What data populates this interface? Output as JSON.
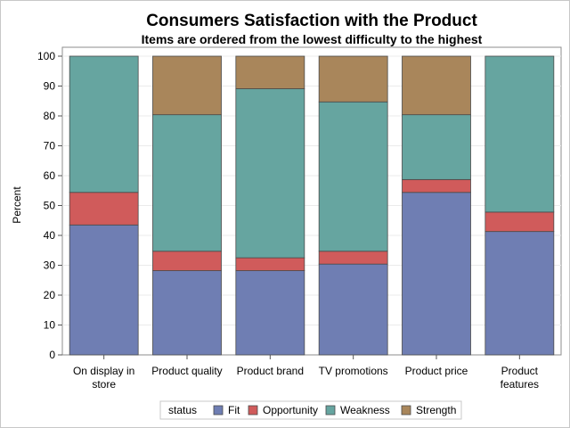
{
  "chart_data": {
    "type": "bar",
    "stacked": true,
    "title": "Consumers Satisfaction with the Product",
    "subtitle": "Items are ordered from the lowest difficulty to the highest",
    "xlabel": "",
    "ylabel": "Percent",
    "ylim": [
      0,
      100
    ],
    "yticks": [
      0,
      10,
      20,
      30,
      40,
      50,
      60,
      70,
      80,
      90,
      100
    ],
    "grid": false,
    "categories": [
      [
        "On display in",
        "store"
      ],
      [
        "Product quality"
      ],
      [
        "Product brand"
      ],
      [
        "TV promotions"
      ],
      [
        "Product price"
      ],
      [
        "Product",
        "features"
      ]
    ],
    "series": [
      {
        "name": "Fit",
        "color": "#6F7EB3",
        "values": [
          43.5,
          28.2,
          28.2,
          30.4,
          54.4,
          41.3
        ]
      },
      {
        "name": "Opportunity",
        "color": "#D05B5B",
        "values": [
          10.9,
          6.5,
          4.3,
          4.3,
          4.3,
          6.5
        ]
      },
      {
        "name": "Weakness",
        "color": "#66A5A0",
        "values": [
          45.6,
          45.7,
          56.6,
          50.0,
          21.7,
          52.2
        ]
      },
      {
        "name": "Strength",
        "color": "#A9865B",
        "values": [
          0,
          19.6,
          10.9,
          15.3,
          19.6,
          0
        ]
      }
    ],
    "legend": {
      "title": "status",
      "placement": "bottom"
    }
  }
}
